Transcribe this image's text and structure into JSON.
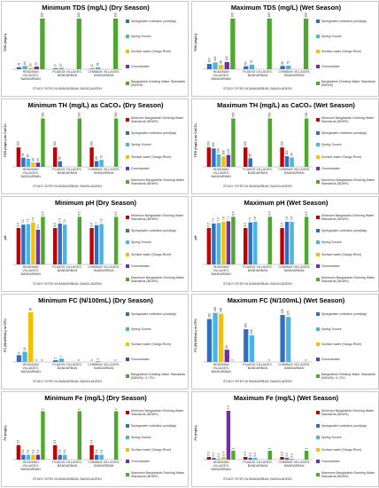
{
  "chart_data": [
    {
      "type": "bar",
      "title": "Minimum TDS (mg/L) (Dry Season)",
      "y_label": "TDS (mg/L)",
      "x_label": "STUDY SITES IN BANDARBAN, BANGLADESH",
      "categories": [
        "HEADMAN VILLAGES, BANDARBAN",
        "PLAIDOI VILLAGES, BANDARBAN",
        "CHIMBUK VILLAGES, BANDARBAN"
      ],
      "ylim": [
        0,
        1050
      ],
      "series": [
        {
          "name": "Springwater collection point(tap)",
          "color": "#2f6fc2",
          "values": [
            41,
            17,
            12
          ]
        },
        {
          "name": "Spring Source",
          "color": "#49b4e0",
          "values": [
            64,
            27,
            38
          ]
        },
        {
          "name": "Surface water (Sangu River)",
          "color": "#f5c000",
          "values": [
            29,
            null,
            null
          ]
        },
        {
          "name": "Groundwater",
          "color": "#7030a0",
          "values": [
            52,
            null,
            null
          ]
        },
        {
          "name": "Bangladesh Drinking Water Standards (BDWS)",
          "color": "#4ea72e",
          "values": [
            1000,
            1000,
            1000
          ]
        }
      ]
    },
    {
      "type": "bar",
      "title": "Maximum TDS (mg/L) (Wet Season)",
      "y_label": "TDS (mg/L)",
      "x_label": "STUDY SITES IN BANDARBAN, BANGLADESH",
      "categories": [
        "HEADMAN VILLAGES, BANDARBAN",
        "PLAIDOI VILLAGES, BANDARBAN",
        "CHIMBUK VILLAGES, BANDARBAN"
      ],
      "ylim": [
        0,
        1050
      ],
      "series": [
        {
          "name": "Springwater collection point(tap)",
          "color": "#2f6fc2",
          "values": [
            104,
            60,
            66
          ]
        },
        {
          "name": "Spring Source",
          "color": "#49b4e0",
          "values": [
            134,
            91,
            72
          ]
        },
        {
          "name": "Surface water (Sangu River)",
          "color": "#f5c000",
          "values": [
            86,
            null,
            null
          ]
        },
        {
          "name": "Groundwater",
          "color": "#7030a0",
          "values": [
            141,
            null,
            null
          ]
        },
        {
          "name": "Bangladesh Drinking Water Standards (BDWS)",
          "color": "#4ea72e",
          "values": [
            1000,
            1000,
            1000
          ]
        }
      ]
    },
    {
      "type": "bar",
      "title": "Minimum TH (mg/L) as CaCO₃ (Dry Season)",
      "y_label": "TDS (mg/L) as CaCO₃",
      "x_label": "STUDY SITES IN BANDARBAN, BANGLADESH",
      "categories": [
        "HEADMAN VILLAGES, BANDARBAN",
        "PLAIDOI VILLAGES, BANDARBAN",
        "CHIMBUK VILLAGES, BANDARBAN"
      ],
      "ylim": [
        0,
        550
      ],
      "series": [
        {
          "name": "Minimum Bangladesh Drinking Water Standards (BDWS)",
          "color": "#c00000",
          "values": [
            200,
            200,
            200
          ]
        },
        {
          "name": "Springwater collection point(tap)",
          "color": "#2f6fc2",
          "values": [
            95,
            58,
            60
          ]
        },
        {
          "name": "Spring Source",
          "color": "#49b4e0",
          "values": [
            84,
            null,
            72
          ]
        },
        {
          "name": "Surface water (Sangu River)",
          "color": "#f5c000",
          "values": [
            45,
            null,
            null
          ]
        },
        {
          "name": "Groundwater",
          "color": "#7030a0",
          "values": [
            43,
            null,
            null
          ]
        },
        {
          "name": "Maximum Bangladesh Drinking Water Standards (BDWS)",
          "color": "#4ea72e",
          "values": [
            500,
            500,
            500
          ]
        }
      ]
    },
    {
      "type": "bar",
      "title": "Maximum TH (mg/L) as CaCO₃ (Wet Season)",
      "y_label": "TDS (mg/L) as CaCO₃",
      "x_label": "STUDY SITES IN BANDARBAN, BANGLADESH",
      "categories": [
        "HEADMAN VILLAGES, BANDARBAN",
        "PLAIDOI VILLAGES, BANDARBAN",
        "CHIMBUK VILLAGES, BANDARBAN"
      ],
      "ylim": [
        0,
        550
      ],
      "series": [
        {
          "name": "Minimum Bangladesh Drinking Water Standards (BDWS)",
          "color": "#c00000",
          "values": [
            200,
            200,
            200
          ]
        },
        {
          "name": "Springwater collection point(tap)",
          "color": "#2f6fc2",
          "values": [
            190,
            88,
            110
          ]
        },
        {
          "name": "Spring Source",
          "color": "#49b4e0",
          "values": [
            130,
            null,
            96
          ]
        },
        {
          "name": "Surface water (Sangu River)",
          "color": "#f5c000",
          "values": [
            108,
            null,
            null
          ]
        },
        {
          "name": "Groundwater",
          "color": "#7030a0",
          "values": [
            123,
            null,
            null
          ]
        },
        {
          "name": "Maximum Bangladesh Drinking Water Standards (BDWS)",
          "color": "#4ea72e",
          "values": [
            500,
            500,
            500
          ]
        }
      ]
    },
    {
      "type": "bar",
      "title": "Minimum pH (Dry Season)",
      "y_label": "pH",
      "x_label": "STUDY SITES IN BANDARBAN, BANGLADESH",
      "categories": [
        "HEADMAN VILLAGES, BANDARBAN",
        "PLAIDOI VILLAGES, BANDARBAN",
        "CHIMBUK VILLAGES, BANDARBAN"
      ],
      "ylim": [
        0,
        9.5
      ],
      "series": [
        {
          "name": "Minimum Bangladesh Drinking Water Standards (BDWS)",
          "color": "#c00000",
          "values": [
            6.5,
            6.5,
            6.5
          ]
        },
        {
          "name": "Springwater collection point(tap)",
          "color": "#2f6fc2",
          "values": [
            7.1,
            7.3,
            7
          ]
        },
        {
          "name": "Spring Source",
          "color": "#49b4e0",
          "values": [
            7.2,
            7.1,
            7.2
          ]
        },
        {
          "name": "Surface water (Sangu River)",
          "color": "#f5c000",
          "values": [
            7.5,
            null,
            null
          ]
        },
        {
          "name": "Groundwater",
          "color": "#7030a0",
          "values": [
            6.2,
            null,
            null
          ]
        },
        {
          "name": "Maximum Bangladesh Drinking Water Standards (BDWS)",
          "color": "#4ea72e",
          "values": [
            8.5,
            8.5,
            8.5
          ]
        }
      ]
    },
    {
      "type": "bar",
      "title": "Maximum pH (Wet Season)",
      "y_label": "pH",
      "x_label": "STUDY SITES IN BANDARBAN, BANGLADESH",
      "categories": [
        "HEADMAN VILLAGES, BANDARBAN",
        "PLAIDOI VILLAGES, BANDARBAN",
        "CHIMBUK VILLAGES, BANDARBAN"
      ],
      "ylim": [
        0,
        9.5
      ],
      "series": [
        {
          "name": "Minimum Bangladesh Drinking Water Standards (BDWS)",
          "color": "#c00000",
          "values": [
            6.5,
            6.5,
            6.5
          ]
        },
        {
          "name": "Springwater collection point(tap)",
          "color": "#2f6fc2",
          "values": [
            7.3,
            7.5,
            7.6
          ]
        },
        {
          "name": "Spring Source",
          "color": "#49b4e0",
          "values": [
            7.4,
            7.6,
            7.6
          ]
        },
        {
          "name": "Surface water (Sangu River)",
          "color": "#f5c000",
          "values": [
            7.6,
            null,
            null
          ]
        },
        {
          "name": "Groundwater",
          "color": "#7030a0",
          "values": [
            7.7,
            null,
            null
          ]
        },
        {
          "name": "Maximum Bangladesh Drinking Water Standards (BDWS)",
          "color": "#4ea72e",
          "values": [
            8.5,
            8.5,
            8.5
          ]
        }
      ]
    },
    {
      "type": "bar",
      "title": "Minimum FC (N/100mL) (Dry Season)",
      "y_label": "FC (N/100mL) in CFU",
      "x_label": "STUDY SITES IN BANDARBAN, BANGLADESH",
      "categories": [
        "HEADMAN VILLAGES, BANDARBAN",
        "PLAIDOI VILLAGES, BANDARBAN",
        "CHIMBUK VILLAGES, BANDARBAN"
      ],
      "ylim": [
        0,
        62
      ],
      "series": [
        {
          "name": "Springwater collection point(tap)",
          "color": "#2f6fc2",
          "values": [
            8,
            2,
            0
          ]
        },
        {
          "name": "Spring Source",
          "color": "#49b4e0",
          "values": [
            12,
            4,
            1
          ]
        },
        {
          "name": "Surface water (Sangu River)",
          "color": "#f5c000",
          "values": [
            58,
            null,
            null
          ]
        },
        {
          "name": "Groundwater",
          "color": "#7030a0",
          "values": [
            0,
            null,
            null
          ]
        },
        {
          "name": "Bangladesh Drinking Water Standards (BDWS)= 0 CFU",
          "color": "#4ea72e",
          "values": [
            0,
            0,
            0
          ]
        }
      ]
    },
    {
      "type": "bar",
      "title": "Maximum FC (N/100mL) (Wet Season)",
      "y_label": "FC (N/100mL) in CFU",
      "x_label": "STUDY SITES IN BANDARBAN, BANGLADESH",
      "categories": [
        "HEADMAN VILLAGES, BANDARBAN",
        "PLAIDOI VILLAGES, BANDARBAN",
        "CHIMBUK VILLAGES, BANDARBAN"
      ],
      "ylim": [
        0,
        260
      ],
      "series": [
        {
          "name": "Springwater collection point(tap)",
          "color": "#2f6fc2",
          "values": [
            210,
            160,
            230
          ]
        },
        {
          "name": "Spring Source",
          "color": "#49b4e0",
          "values": [
            240,
            130,
            220
          ]
        },
        {
          "name": "Surface water (Sangu River)",
          "color": "#f5c000",
          "values": [
            236,
            null,
            null
          ]
        },
        {
          "name": "Groundwater",
          "color": "#7030a0",
          "values": [
            60,
            null,
            null
          ]
        },
        {
          "name": "Bangladesh Drinking Water Standards (BDWS)= 0 CFU",
          "color": "#4ea72e",
          "values": [
            0,
            0,
            0
          ]
        }
      ]
    },
    {
      "type": "bar",
      "title": "Minimum Fe (mg/L) (Dry Season)",
      "y_label": "Fe (mg/L)",
      "x_label": "STUDY SITES IN BANDARBAN, BANGLADESH",
      "categories": [
        "HEADMAN VILLAGES, BANDARBAN",
        "PLAIDOI VILLAGES, BANDARBAN",
        "CHIMBUK VILLAGES, BANDARBAN"
      ],
      "ylim": [
        0,
        1.1
      ],
      "series": [
        {
          "name": "Minimum Bangladesh Drinking Water Standards (BDWS)",
          "color": "#c00000",
          "values": [
            0.3,
            0.3,
            0.3
          ]
        },
        {
          "name": "Springwater collection point(tap)",
          "color": "#2f6fc2",
          "values": [
            0.1,
            0.1,
            0.1
          ]
        },
        {
          "name": "Spring Source",
          "color": "#49b4e0",
          "values": [
            0.1,
            0.1,
            0.1
          ]
        },
        {
          "name": "Surface water (Sangu River)",
          "color": "#f5c000",
          "values": [
            0.1,
            null,
            null
          ]
        },
        {
          "name": "Groundwater",
          "color": "#7030a0",
          "values": [
            0.1,
            null,
            null
          ]
        },
        {
          "name": "Maximum Bangladesh Drinking Water Standards (BDWS)",
          "color": "#4ea72e",
          "values": [
            1,
            1,
            1
          ]
        }
      ]
    },
    {
      "type": "bar",
      "title": "Maximum Fe (mg/L) (Wet Season)",
      "y_label": "Fe (mg/L)",
      "x_label": "STUDY SITES IN BANDARBAN, BANGLADESH",
      "categories": [
        "HEADMAN VILLAGES, BANDARBAN",
        "PLAIDOI VILLAGES, BANDARBAN",
        "CHIMBUK VILLAGES, BANDARBAN"
      ],
      "ylim": [
        0,
        6
      ],
      "series": [
        {
          "name": "Minimum Bangladesh Drinking Water Standards (BDWS)",
          "color": "#c00000",
          "values": [
            0.3,
            0.3,
            0.3
          ]
        },
        {
          "name": "Springwater collection point(tap)",
          "color": "#2f6fc2",
          "values": [
            0.2,
            0.2,
            0.2
          ]
        },
        {
          "name": "Spring Source",
          "color": "#49b4e0",
          "values": [
            0.1,
            0.2,
            0.1
          ]
        },
        {
          "name": "Surface water (Sangu River)",
          "color": "#f5c000",
          "values": [
            0.3,
            null,
            null
          ]
        },
        {
          "name": "Groundwater",
          "color": "#7030a0",
          "values": [
            5.5,
            null,
            null
          ]
        },
        {
          "name": "Maximum Bangladesh Drinking Water Standards (BDWS)",
          "color": "#4ea72e",
          "values": [
            1,
            1,
            1
          ]
        }
      ]
    }
  ]
}
